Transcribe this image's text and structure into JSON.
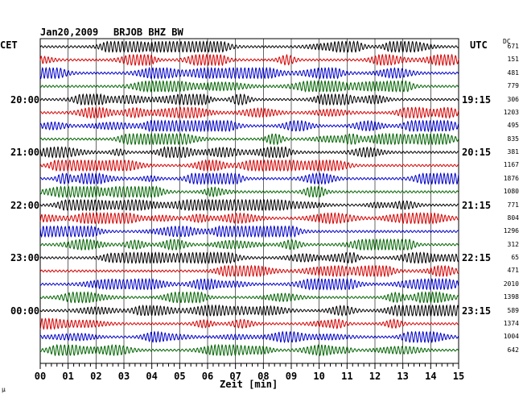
{
  "header": {
    "date": "Jan20,2009",
    "station": "BRJOB BHZ BW"
  },
  "left_axis": {
    "title": "CET"
  },
  "right_axis": {
    "title": "UTC",
    "dc_title": "DC"
  },
  "footer": {
    "mark": "μ"
  },
  "colors": {
    "black": "#000000",
    "red": "#d40000",
    "blue": "#0000c8",
    "green": "#006400",
    "grid": "#000000"
  },
  "chart_data": {
    "type": "line",
    "title": "Jan20,2009  BRJOB BHZ BW",
    "xlabel": "Zeit [min]",
    "xlim": [
      0,
      15
    ],
    "x_ticks": [
      "00",
      "01",
      "02",
      "03",
      "04",
      "05",
      "06",
      "07",
      "08",
      "09",
      "10",
      "11",
      "12",
      "13",
      "14",
      "15"
    ],
    "row_count": 24,
    "row_color_cycle": [
      "black",
      "red",
      "blue",
      "green"
    ],
    "left_time_labels": [
      {
        "row": 4,
        "label": "20:00"
      },
      {
        "row": 8,
        "label": "21:00"
      },
      {
        "row": 12,
        "label": "22:00"
      },
      {
        "row": 16,
        "label": "23:00"
      },
      {
        "row": 20,
        "label": "00:00"
      }
    ],
    "right_time_labels": [
      {
        "row": 4,
        "label": "19:15"
      },
      {
        "row": 8,
        "label": "20:15"
      },
      {
        "row": 12,
        "label": "21:15"
      },
      {
        "row": 16,
        "label": "22:15"
      },
      {
        "row": 20,
        "label": "23:15"
      }
    ],
    "dc_offsets": [
      "671",
      "151",
      "481",
      "779",
      "306",
      "1203",
      "495",
      "835",
      "381",
      "1167",
      "1876",
      "1080",
      "771",
      "804",
      "1296",
      "312",
      "65",
      "471",
      "2010",
      "1398",
      "589",
      "1374",
      "1004",
      "642"
    ]
  }
}
